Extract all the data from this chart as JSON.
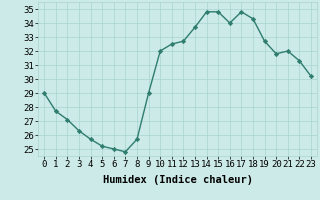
{
  "x": [
    0,
    1,
    2,
    3,
    4,
    5,
    6,
    7,
    8,
    9,
    10,
    11,
    12,
    13,
    14,
    15,
    16,
    17,
    18,
    19,
    20,
    21,
    22,
    23
  ],
  "y": [
    29.0,
    27.7,
    27.1,
    26.3,
    25.7,
    25.2,
    25.0,
    24.8,
    25.7,
    29.0,
    32.0,
    32.5,
    32.7,
    33.7,
    34.8,
    34.8,
    34.0,
    34.8,
    34.3,
    32.7,
    31.8,
    32.0,
    31.3,
    30.2
  ],
  "xlabel": "Humidex (Indice chaleur)",
  "ylim": [
    24.5,
    35.5
  ],
  "xlim": [
    -0.5,
    23.5
  ],
  "yticks": [
    25,
    26,
    27,
    28,
    29,
    30,
    31,
    32,
    33,
    34,
    35
  ],
  "xticks": [
    0,
    1,
    2,
    3,
    4,
    5,
    6,
    7,
    8,
    9,
    10,
    11,
    12,
    13,
    14,
    15,
    16,
    17,
    18,
    19,
    20,
    21,
    22,
    23
  ],
  "line_color": "#2e7d6e",
  "marker_color": "#2e7d6e",
  "bg_color": "#cceae7",
  "grid_color": "#a8d5cf",
  "marker": "D",
  "marker_size": 2.2,
  "line_width": 1.0,
  "xlabel_fontsize": 7.5,
  "tick_fontsize": 6.5
}
